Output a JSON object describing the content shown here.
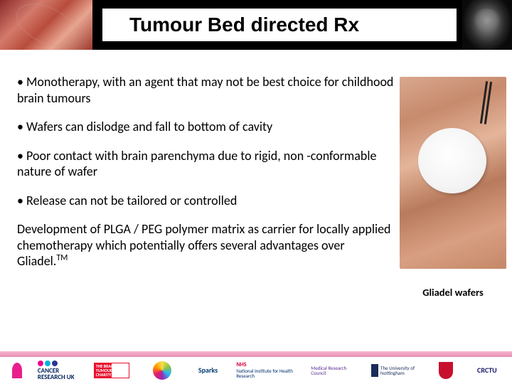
{
  "header": {
    "title": "Tumour Bed directed Rx"
  },
  "bullets": [
    "• Monotherapy, with an agent that may not be best choice for childhood brain tumours",
    "• Wafers can dislodge and fall to bottom of cavity",
    "• Poor contact with brain parenchyma due to rigid, non -conformable nature of wafer",
    "• Release can not be tailored or controlled"
  ],
  "summary": {
    "text_pre": "Development of PLGA / PEG polymer matrix as carrier for locally applied chemotherapy which potentially offers several advantages over Gliadel.",
    "tm": "TM"
  },
  "image_caption": "Gliadel wafers",
  "footer": {
    "logos": {
      "cruk": "CANCER RESEARCH UK",
      "btc": "THE BRAIN TUMOUR CHARITY",
      "cwc": "Children with Cancer UK",
      "sparks": "Sparks",
      "nihr_brand": "NHS",
      "nihr": "National Institute for Health Research",
      "mrc": "Medical Research Council",
      "nottingham": "The University of Nottingham",
      "newcastle": "Newcastle University",
      "crctu": "CRCTU"
    }
  },
  "colors": {
    "header_bg": "#000000",
    "pink_bar": "#e88fb4",
    "text": "#000000"
  }
}
